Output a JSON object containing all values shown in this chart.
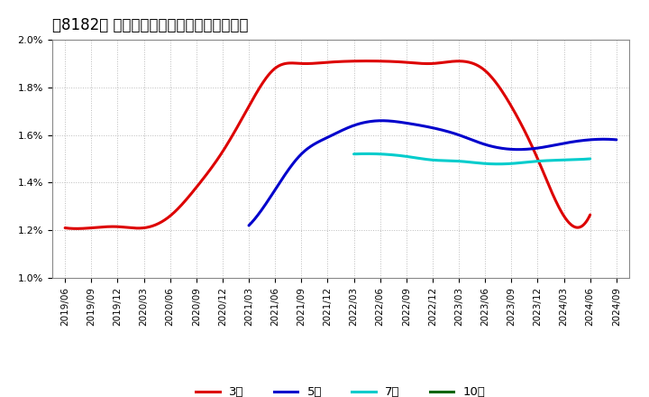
{
  "title": "［8182］ 経常利益マージンの平均値の推移",
  "x_labels": [
    "2019/06",
    "2019/09",
    "2019/12",
    "2020/03",
    "2020/06",
    "2020/09",
    "2020/12",
    "2021/03",
    "2021/06",
    "2021/09",
    "2021/12",
    "2022/03",
    "2022/06",
    "2022/09",
    "2022/12",
    "2023/03",
    "2023/06",
    "2023/09",
    "2023/12",
    "2024/03",
    "2024/06",
    "2024/09"
  ],
  "series_3y": [
    0.0121,
    0.0121,
    0.01215,
    0.0121,
    0.0126,
    0.0138,
    0.0153,
    0.0172,
    0.0188,
    0.019,
    0.01905,
    0.0191,
    0.0191,
    0.01905,
    0.019,
    0.0191,
    0.0187,
    0.0172,
    0.015,
    0.0126,
    0.01265,
    null
  ],
  "series_5y": [
    null,
    null,
    null,
    null,
    null,
    null,
    null,
    0.0122,
    0.0137,
    0.0152,
    0.0159,
    0.0164,
    0.0166,
    0.0165,
    0.0163,
    0.016,
    0.0156,
    0.0154,
    0.01545,
    0.01565,
    0.0158,
    0.0158
  ],
  "series_7y": [
    null,
    null,
    null,
    null,
    null,
    null,
    null,
    null,
    null,
    null,
    null,
    0.0152,
    0.0152,
    0.0151,
    0.01495,
    0.0149,
    0.0148,
    0.0148,
    0.0149,
    0.01495,
    0.015,
    null
  ],
  "series_10y": [
    null,
    null,
    null,
    null,
    null,
    null,
    null,
    null,
    null,
    null,
    null,
    null,
    null,
    null,
    null,
    null,
    null,
    null,
    null,
    null,
    null,
    null
  ],
  "colors": {
    "3y": "#dd0000",
    "5y": "#0000cc",
    "7y": "#00cccc",
    "10y": "#006600"
  },
  "ylim": [
    0.01,
    0.02
  ],
  "yticks": [
    0.01,
    0.012,
    0.014,
    0.016,
    0.018,
    0.02
  ],
  "background": "#ffffff",
  "plot_bg": "#ffffff",
  "grid_color": "#bbbbbb",
  "legend_labels": [
    "3年",
    "5年",
    "7年",
    "10年"
  ],
  "title_fontsize": 12,
  "tick_fontsize": 7.5
}
